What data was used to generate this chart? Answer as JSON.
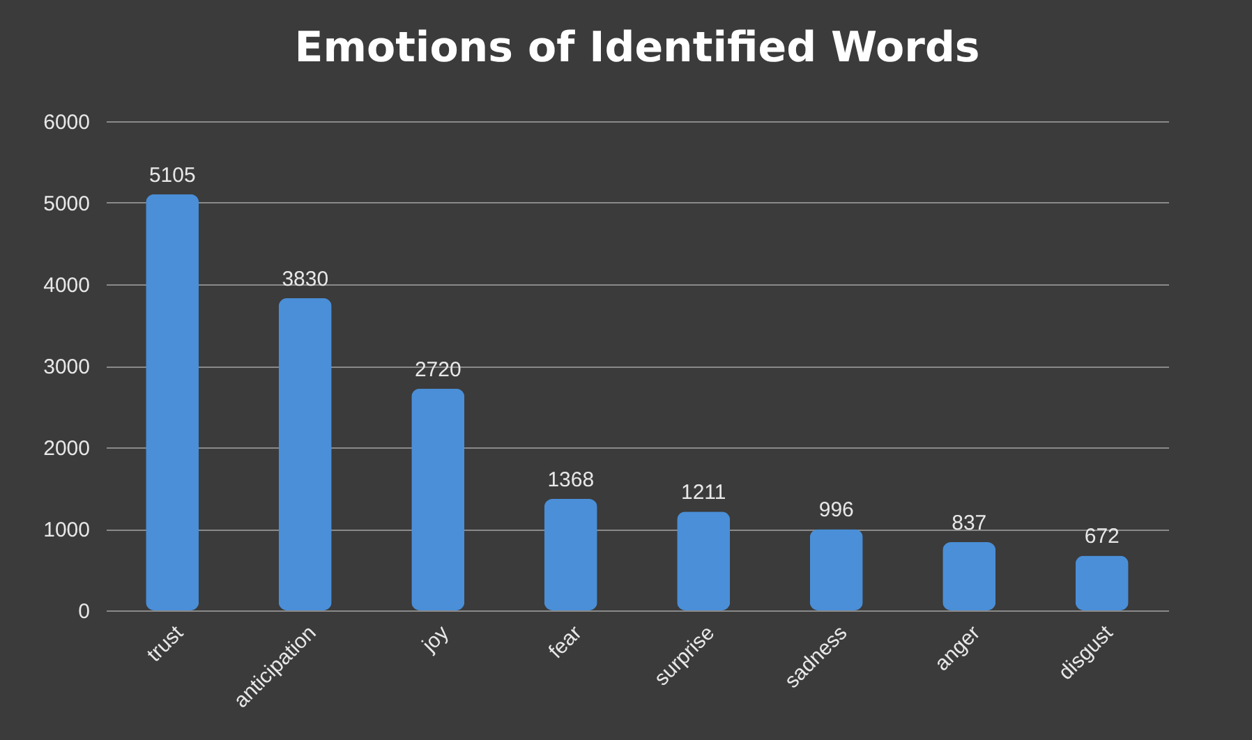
{
  "chart_data": {
    "type": "bar",
    "title": "Emotions of Identified Words",
    "categories": [
      "trust",
      "anticipation",
      "joy",
      "fear",
      "surprise",
      "sadness",
      "anger",
      "disgust"
    ],
    "values": [
      5105,
      3830,
      2720,
      1368,
      1211,
      996,
      837,
      672
    ],
    "color": "#4a8fd8",
    "ylim": [
      0,
      6000
    ],
    "yticks": [
      0,
      1000,
      2000,
      3000,
      4000,
      5000,
      6000
    ],
    "grid": "y",
    "data_labels": true
  }
}
